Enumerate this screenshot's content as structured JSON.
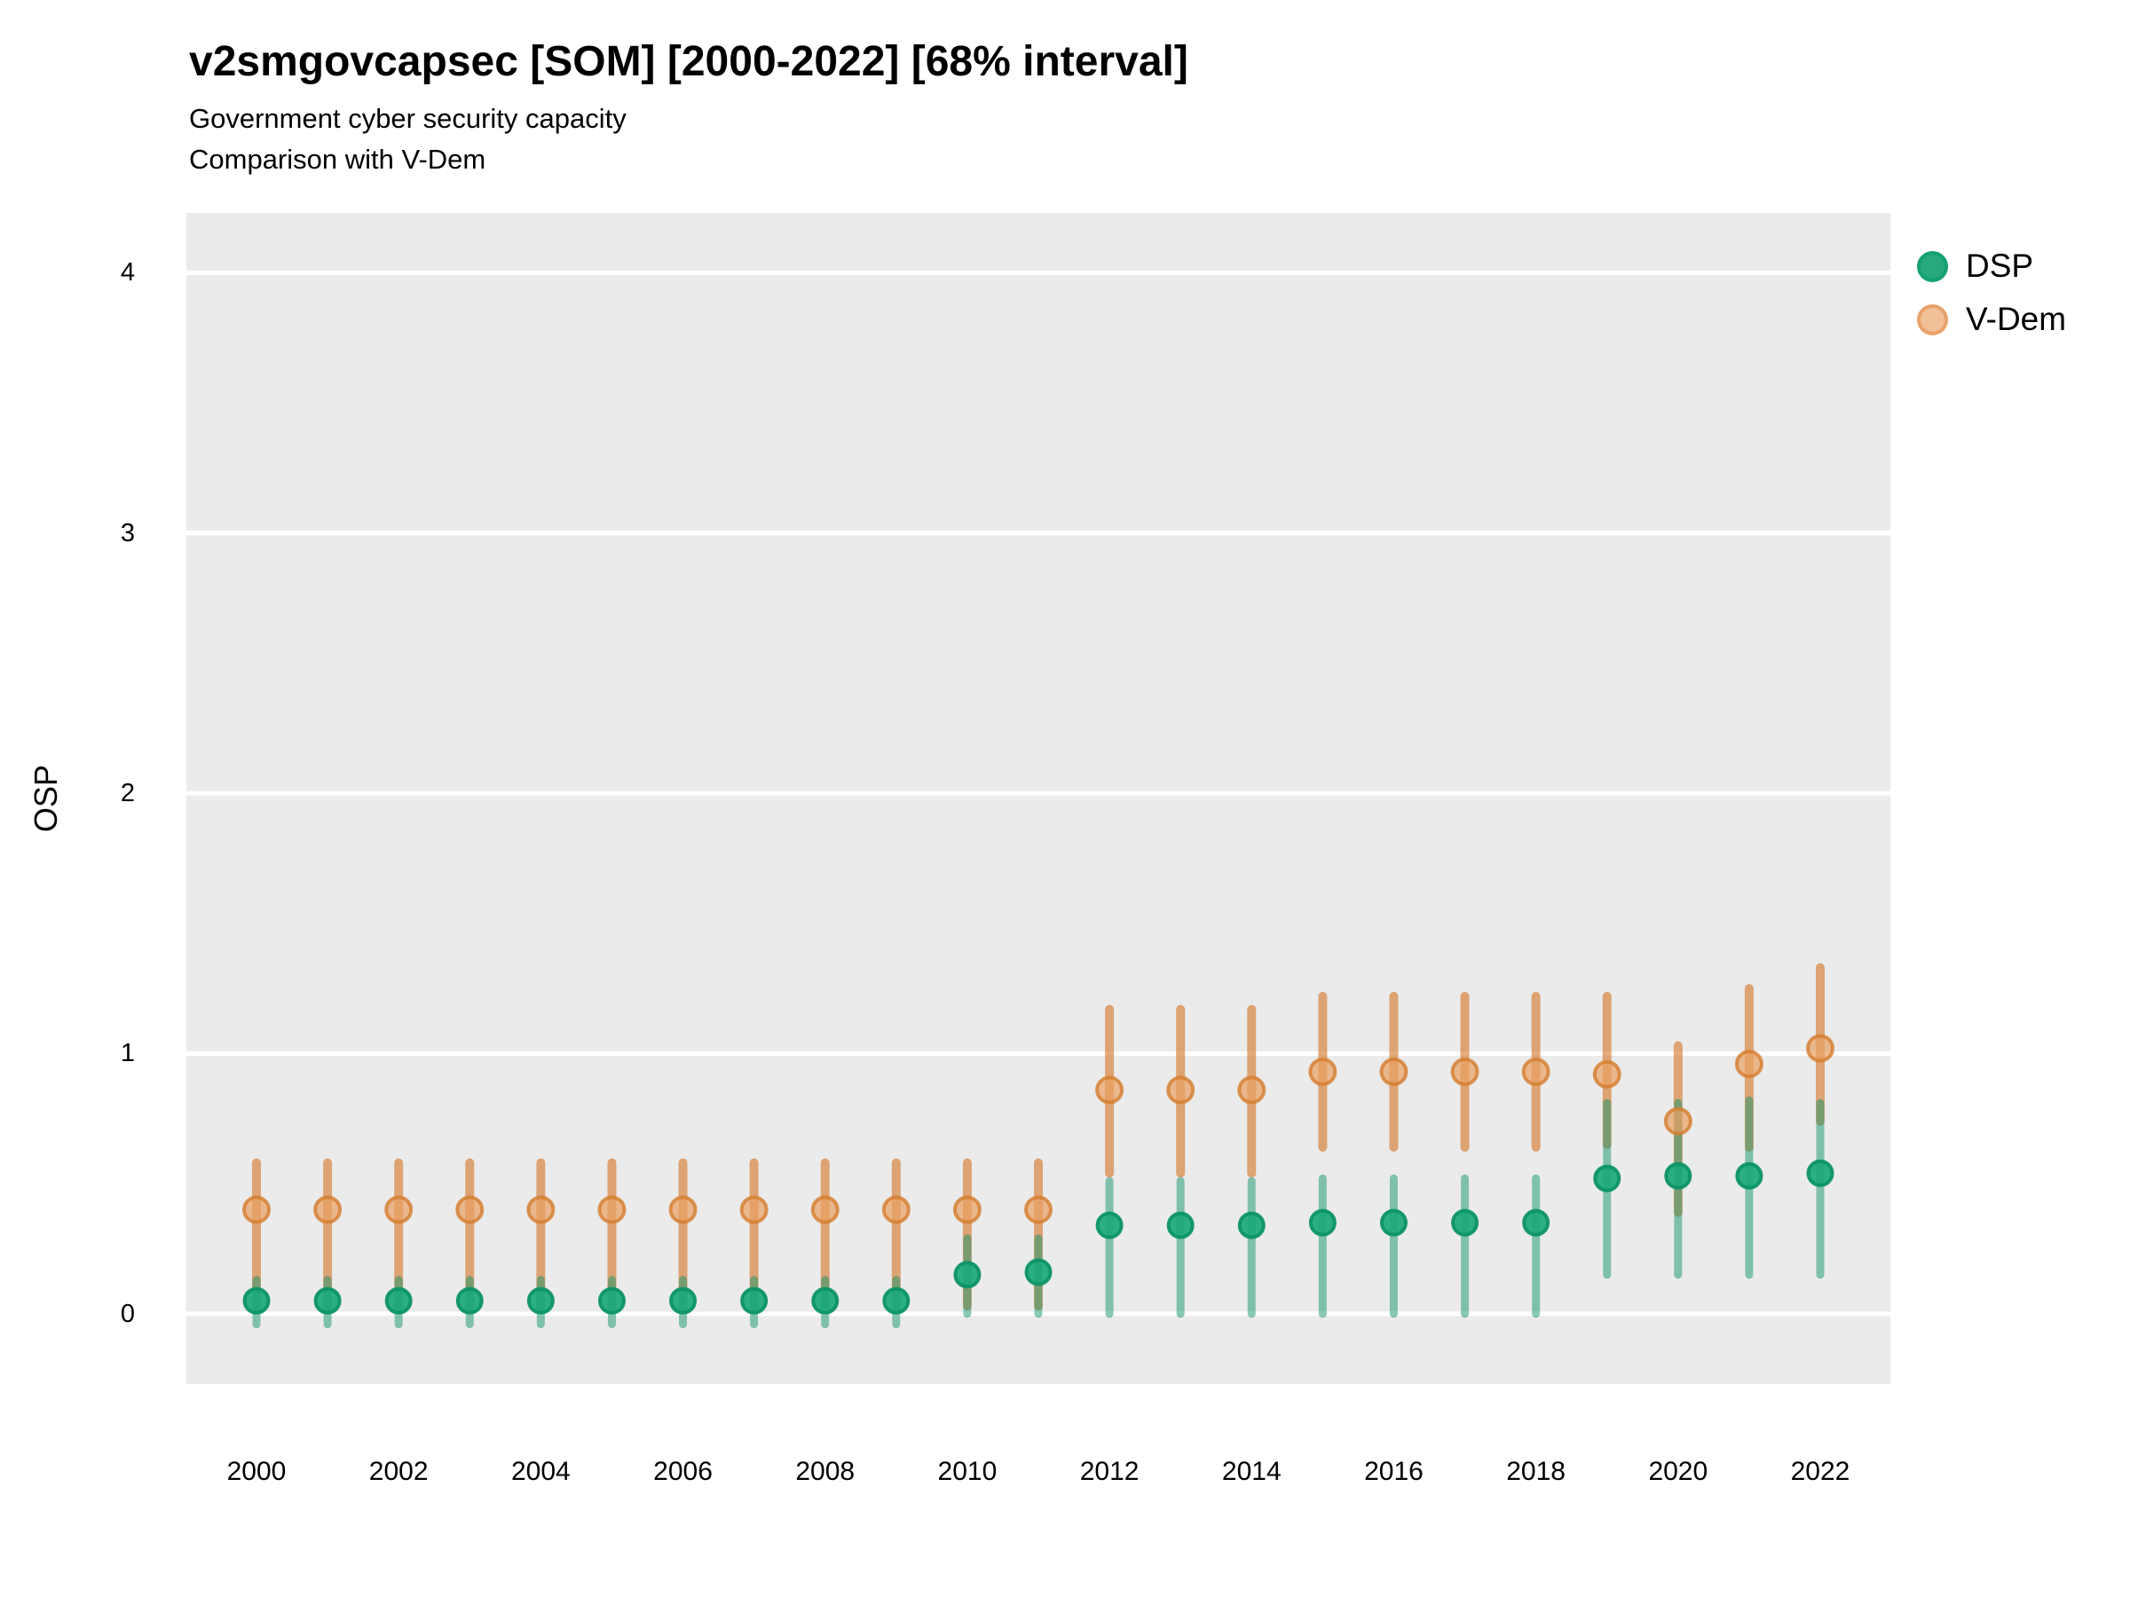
{
  "header": {
    "title": "v2smgovcapsec [SOM] [2000-2022] [68% interval]",
    "subtitle_line1": "Government cyber security capacity",
    "subtitle_line2": "Comparison with V-Dem"
  },
  "y_axis": {
    "label": "OSP"
  },
  "legend": {
    "items": [
      {
        "key": "dsp",
        "label": "DSP"
      },
      {
        "key": "vdem",
        "label": "V-Dem"
      }
    ]
  },
  "colors": {
    "page_bg": "#ffffff",
    "panel_bg": "#ebebeb",
    "gridline": "#ffffff",
    "text": "#000000",
    "dsp_bar": "rgba(18,150,110,0.50)",
    "dsp_point_fill": "rgba(26,168,122,0.92)",
    "dsp_point_stroke": "rgba(13,148,102,0.95)",
    "vdem_bar": "rgba(214,124,50,0.65)",
    "vdem_point_fill": "rgba(233,160,98,0.70)",
    "vdem_point_stroke": "rgba(213,125,45,0.80)",
    "legend_dsp_fill": "#27a87d",
    "legend_dsp_stroke": "#14a172",
    "legend_vdem_fill": "#f2c096",
    "legend_vdem_stroke": "#e8a269"
  },
  "chart_data": {
    "type": "scatter",
    "title": "v2smgovcapsec [SOM] [2000-2022] [68% interval]",
    "subtitle": "Government cyber security capacity — Comparison with V-Dem",
    "xlabel": "",
    "ylabel": "OSP",
    "interval": "68%",
    "legend_position": "right",
    "grid": "horizontal-major-white",
    "ylim": [
      -0.27,
      4.23
    ],
    "y_ticks": [
      0,
      1,
      2,
      3,
      4
    ],
    "x_tick_labels": [
      "2000",
      "2002",
      "2004",
      "2006",
      "2008",
      "2010",
      "2012",
      "2014",
      "2016",
      "2018",
      "2020",
      "2022"
    ],
    "x": [
      2000,
      2001,
      2002,
      2003,
      2004,
      2005,
      2006,
      2007,
      2008,
      2009,
      2010,
      2011,
      2012,
      2013,
      2014,
      2015,
      2016,
      2017,
      2018,
      2019,
      2020,
      2021,
      2022
    ],
    "series": [
      {
        "name": "DSP",
        "key": "dsp",
        "values": [
          0.05,
          0.05,
          0.05,
          0.05,
          0.05,
          0.05,
          0.05,
          0.05,
          0.05,
          0.05,
          0.15,
          0.16,
          0.34,
          0.34,
          0.34,
          0.35,
          0.35,
          0.35,
          0.35,
          0.52,
          0.53,
          0.53,
          0.54
        ],
        "lower": [
          -0.04,
          -0.04,
          -0.04,
          -0.04,
          -0.04,
          -0.04,
          -0.04,
          -0.04,
          -0.04,
          -0.04,
          0.0,
          0.0,
          0.0,
          0.0,
          0.0,
          0.0,
          0.0,
          0.0,
          0.0,
          0.15,
          0.15,
          0.15,
          0.15
        ],
        "upper": [
          0.13,
          0.13,
          0.13,
          0.13,
          0.13,
          0.13,
          0.13,
          0.13,
          0.13,
          0.13,
          0.29,
          0.29,
          0.51,
          0.51,
          0.51,
          0.52,
          0.52,
          0.52,
          0.52,
          0.81,
          0.81,
          0.82,
          0.81
        ]
      },
      {
        "name": "V-Dem",
        "key": "vdem",
        "values": [
          0.4,
          0.4,
          0.4,
          0.4,
          0.4,
          0.4,
          0.4,
          0.4,
          0.4,
          0.4,
          0.4,
          0.4,
          0.86,
          0.86,
          0.86,
          0.93,
          0.93,
          0.93,
          0.93,
          0.92,
          0.74,
          0.96,
          1.02
        ],
        "lower": [
          0.03,
          0.03,
          0.03,
          0.03,
          0.03,
          0.03,
          0.03,
          0.03,
          0.03,
          0.03,
          0.03,
          0.03,
          0.54,
          0.54,
          0.54,
          0.64,
          0.64,
          0.64,
          0.64,
          0.65,
          0.39,
          0.64,
          0.74
        ],
        "upper": [
          0.58,
          0.58,
          0.58,
          0.58,
          0.58,
          0.58,
          0.58,
          0.58,
          0.58,
          0.58,
          0.58,
          0.58,
          1.17,
          1.17,
          1.17,
          1.22,
          1.22,
          1.22,
          1.22,
          1.22,
          1.03,
          1.25,
          1.33
        ]
      }
    ]
  }
}
